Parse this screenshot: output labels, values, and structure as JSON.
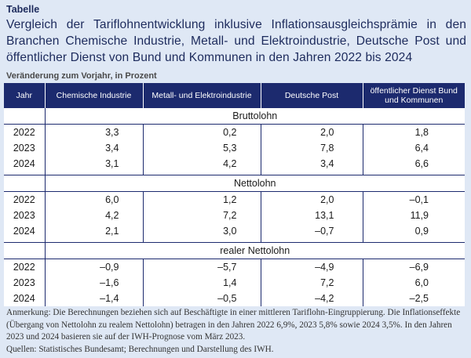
{
  "header": {
    "label": "Tabelle",
    "title": "Vergleich der Tariflohnentwicklung inklusive Inflationsausgleichsprämie in den Branchen Chemische Industrie, Metall- und Elektroindustrie, Deutsche Post und öffentlicher Dienst von Bund und Kommunen in den Jahren 2022 bis 2024",
    "subtitle": "Veränderung zum Vorjahr, in Prozent"
  },
  "table": {
    "columns": [
      "Jahr",
      "Chemische Industrie",
      "Metall- und Elektroindustrie",
      "Deutsche Post",
      "öffentlicher Dienst Bund und Kommunen"
    ],
    "sections": [
      {
        "label": "Bruttolohn",
        "rows": [
          [
            "2022",
            "3,3",
            "0,2",
            "2,0",
            "1,8"
          ],
          [
            "2023",
            "3,4",
            "5,3",
            "7,8",
            "6,4"
          ],
          [
            "2024",
            "3,1",
            "4,2",
            "3,4",
            "6,6"
          ]
        ]
      },
      {
        "label": "Nettolohn",
        "rows": [
          [
            "2022",
            "6,0",
            "1,2",
            "2,0",
            "–0,1"
          ],
          [
            "2023",
            "4,2",
            "7,2",
            "13,1",
            "11,9"
          ],
          [
            "2024",
            "2,1",
            "3,0",
            "–0,7",
            "0,9"
          ]
        ]
      },
      {
        "label": "realer Nettolohn",
        "rows": [
          [
            "2022",
            "–0,9",
            "–5,7",
            "–4,9",
            "–6,9"
          ],
          [
            "2023",
            "–1,6",
            "1,4",
            "7,2",
            "6,0"
          ],
          [
            "2024",
            "–1,4",
            "–0,5",
            "–4,2",
            "–2,5"
          ]
        ]
      }
    ]
  },
  "notes": {
    "annotation": "Anmerkung: Die Berechnungen beziehen sich auf Beschäftigte in einer mittleren Tariflohn-Eingruppierung. Die Inflationseffekte (Übergang von Nettolohn zu realem Nettolohn) betragen in den Jahren 2022 6,9%, 2023 5,8% sowie 2024 3,5%. In den Jahren 2023 und 2024 basieren sie auf der IWH-Prognose vom März 2023.",
    "sources": "Quellen: Statistisches Bundesamt; Berechnungen und Darstellung des IWH."
  },
  "colors": {
    "header_bg": "#1c2a6e",
    "page_bg": "#dfe8f5",
    "title_text": "#1c2a5c"
  }
}
